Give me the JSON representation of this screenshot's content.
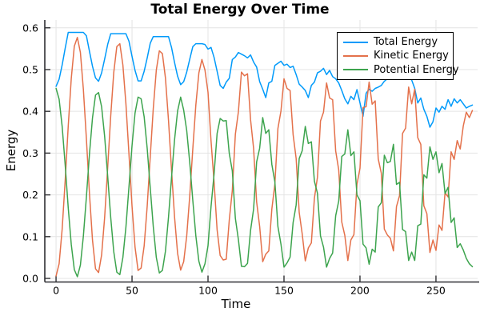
{
  "chart_data": {
    "type": "line",
    "title": "Total Energy Over Time",
    "xlabel": "Time",
    "ylabel": "Energy",
    "xlim": [
      -7.4,
      277.4
    ],
    "ylim": [
      -0.0086,
      0.6187
    ],
    "grid": true,
    "legend_position": "top-right",
    "axis_color": "#2f2f33",
    "grid_color": "#e4e4e4",
    "xticks": {
      "values": [
        0,
        50,
        100,
        150,
        200,
        250
      ],
      "labels": [
        "0",
        "50",
        "100",
        "150",
        "200",
        "250"
      ]
    },
    "yticks": {
      "values": [
        0.0,
        0.1,
        0.2,
        0.3,
        0.4,
        0.5,
        0.6
      ],
      "labels": [
        "0.0",
        "0.1",
        "0.2",
        "0.3",
        "0.4",
        "0.5",
        "0.6"
      ]
    },
    "x": [
      0,
      2,
      4,
      6,
      8,
      10,
      12,
      14,
      16,
      18,
      20,
      22,
      24,
      26,
      28,
      30,
      32,
      34,
      36,
      38,
      40,
      42,
      44,
      46,
      48,
      50,
      52,
      54,
      56,
      58,
      60,
      62,
      64,
      66,
      68,
      70,
      72,
      74,
      76,
      78,
      80,
      82,
      84,
      86,
      88,
      90,
      92,
      94,
      96,
      98,
      100,
      102,
      104,
      106,
      108,
      110,
      112,
      114,
      116,
      118,
      120,
      122,
      124,
      126,
      128,
      130,
      132,
      134,
      136,
      138,
      140,
      142,
      144,
      146,
      148,
      150,
      152,
      154,
      156,
      158,
      160,
      162,
      164,
      166,
      168,
      170,
      172,
      174,
      176,
      178,
      180,
      182,
      184,
      186,
      188,
      190,
      192,
      194,
      196,
      198,
      200,
      202,
      204,
      206,
      208,
      210,
      212,
      214,
      216,
      218,
      220,
      222,
      224,
      226,
      228,
      230,
      232,
      234,
      236,
      238,
      240,
      242,
      244,
      246,
      248,
      250,
      252,
      254,
      256,
      258,
      260,
      262,
      264,
      266,
      268,
      270,
      272,
      274
    ],
    "series": [
      {
        "name": "Total Energy",
        "color": "#009AFA",
        "values": [
          0.46,
          0.477,
          0.511,
          0.551,
          0.589,
          0.589,
          0.589,
          0.589,
          0.589,
          0.589,
          0.581,
          0.544,
          0.508,
          0.48,
          0.472,
          0.492,
          0.525,
          0.56,
          0.586,
          0.586,
          0.586,
          0.586,
          0.586,
          0.586,
          0.568,
          0.532,
          0.498,
          0.473,
          0.473,
          0.496,
          0.528,
          0.563,
          0.579,
          0.579,
          0.579,
          0.579,
          0.579,
          0.579,
          0.553,
          0.517,
          0.484,
          0.464,
          0.471,
          0.494,
          0.525,
          0.555,
          0.562,
          0.562,
          0.562,
          0.56,
          0.549,
          0.553,
          0.529,
          0.496,
          0.462,
          0.455,
          0.47,
          0.479,
          0.524,
          0.53,
          0.541,
          0.537,
          0.533,
          0.528,
          0.535,
          0.518,
          0.506,
          0.471,
          0.453,
          0.433,
          0.468,
          0.472,
          0.51,
          0.515,
          0.52,
          0.51,
          0.513,
          0.505,
          0.508,
          0.488,
          0.465,
          0.458,
          0.45,
          0.433,
          0.462,
          0.47,
          0.492,
          0.496,
          0.503,
          0.488,
          0.498,
          0.483,
          0.478,
          0.468,
          0.45,
          0.43,
          0.418,
          0.436,
          0.428,
          0.452,
          0.42,
          0.388,
          0.443,
          0.453,
          0.448,
          0.455,
          0.458,
          0.462,
          0.472,
          0.478,
          0.482,
          0.488,
          0.478,
          0.492,
          0.486,
          0.495,
          0.49,
          0.475,
          0.455,
          0.42,
          0.432,
          0.405,
          0.388,
          0.362,
          0.375,
          0.408,
          0.398,
          0.412,
          0.405,
          0.428,
          0.412,
          0.43,
          0.42,
          0.428,
          0.418,
          0.408,
          0.412,
          0.415
        ]
      },
      {
        "name": "Kinetic Energy",
        "color": "#E4714B",
        "values": [
          0.006,
          0.035,
          0.118,
          0.235,
          0.365,
          0.479,
          0.556,
          0.577,
          0.541,
          0.453,
          0.334,
          0.204,
          0.092,
          0.023,
          0.014,
          0.056,
          0.146,
          0.265,
          0.389,
          0.493,
          0.555,
          0.562,
          0.511,
          0.418,
          0.298,
          0.174,
          0.075,
          0.019,
          0.025,
          0.078,
          0.173,
          0.291,
          0.407,
          0.499,
          0.545,
          0.538,
          0.48,
          0.379,
          0.26,
          0.147,
          0.06,
          0.02,
          0.04,
          0.102,
          0.198,
          0.31,
          0.415,
          0.492,
          0.524,
          0.499,
          0.446,
          0.329,
          0.231,
          0.116,
          0.055,
          0.044,
          0.046,
          0.14,
          0.211,
          0.345,
          0.399,
          0.494,
          0.485,
          0.49,
          0.38,
          0.311,
          0.183,
          0.124,
          0.04,
          0.058,
          0.066,
          0.166,
          0.226,
          0.359,
          0.401,
          0.478,
          0.455,
          0.45,
          0.344,
          0.287,
          0.158,
          0.106,
          0.042,
          0.073,
          0.085,
          0.192,
          0.242,
          0.377,
          0.398,
          0.468,
          0.432,
          0.428,
          0.305,
          0.26,
          0.135,
          0.103,
          0.043,
          0.092,
          0.105,
          0.225,
          0.264,
          0.409,
          0.411,
          0.47,
          0.417,
          0.425,
          0.286,
          0.252,
          0.118,
          0.104,
          0.096,
          0.066,
          0.172,
          0.198,
          0.347,
          0.36,
          0.458,
          0.418,
          0.453,
          0.337,
          0.321,
          0.174,
          0.155,
          0.062,
          0.092,
          0.067,
          0.128,
          0.115,
          0.205,
          0.195,
          0.303,
          0.285,
          0.33,
          0.31,
          0.365,
          0.398,
          0.385,
          0.402
        ]
      },
      {
        "name": "Potential Energy",
        "color": "#3DA44E",
        "values": [
          0.455,
          0.429,
          0.364,
          0.271,
          0.169,
          0.081,
          0.021,
          0.004,
          0.032,
          0.101,
          0.195,
          0.297,
          0.384,
          0.439,
          0.445,
          0.411,
          0.34,
          0.245,
          0.146,
          0.064,
          0.015,
          0.009,
          0.05,
          0.123,
          0.219,
          0.317,
          0.396,
          0.434,
          0.43,
          0.387,
          0.311,
          0.217,
          0.124,
          0.05,
          0.013,
          0.019,
          0.065,
          0.146,
          0.241,
          0.332,
          0.401,
          0.434,
          0.403,
          0.354,
          0.277,
          0.187,
          0.102,
          0.041,
          0.015,
          0.035,
          0.078,
          0.172,
          0.25,
          0.347,
          0.383,
          0.377,
          0.378,
          0.299,
          0.257,
          0.144,
          0.093,
          0.029,
          0.028,
          0.036,
          0.115,
          0.166,
          0.279,
          0.312,
          0.385,
          0.347,
          0.356,
          0.273,
          0.231,
          0.124,
          0.082,
          0.027,
          0.037,
          0.051,
          0.134,
          0.176,
          0.287,
          0.306,
          0.364,
          0.323,
          0.327,
          0.233,
          0.204,
          0.102,
          0.075,
          0.027,
          0.048,
          0.061,
          0.15,
          0.185,
          0.292,
          0.298,
          0.356,
          0.294,
          0.303,
          0.2,
          0.186,
          0.082,
          0.073,
          0.034,
          0.07,
          0.063,
          0.171,
          0.181,
          0.295,
          0.277,
          0.28,
          0.321,
          0.225,
          0.23,
          0.117,
          0.112,
          0.043,
          0.063,
          0.043,
          0.126,
          0.13,
          0.248,
          0.24,
          0.315,
          0.285,
          0.303,
          0.253,
          0.275,
          0.203,
          0.218,
          0.134,
          0.145,
          0.074,
          0.083,
          0.068,
          0.048,
          0.035,
          0.028
        ]
      }
    ]
  }
}
